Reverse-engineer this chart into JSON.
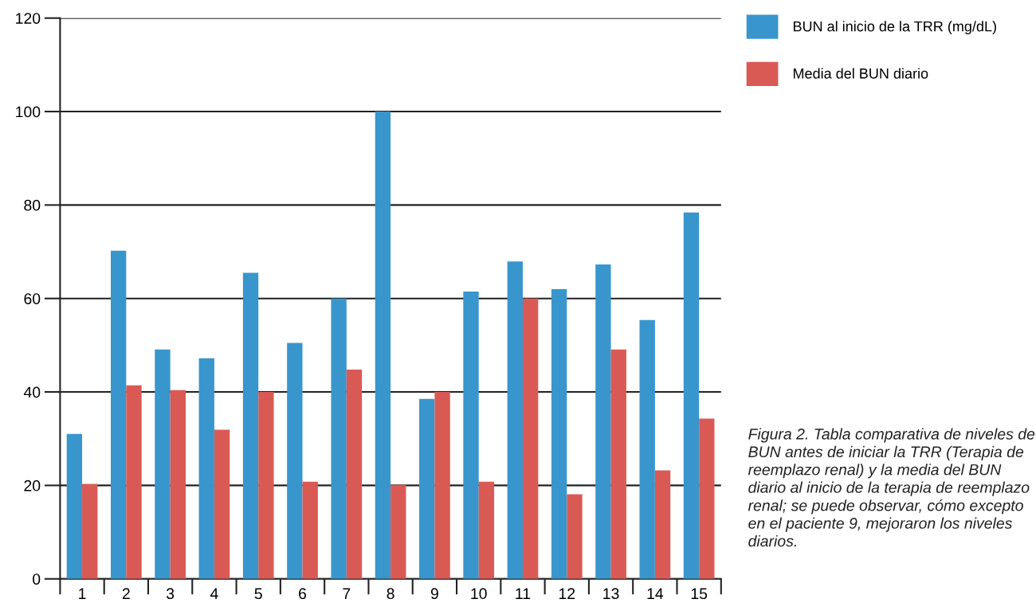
{
  "chart_data": {
    "type": "bar",
    "categories": [
      "1",
      "2",
      "3",
      "4",
      "5",
      "6",
      "7",
      "8",
      "9",
      "10",
      "11",
      "12",
      "13",
      "14",
      "15"
    ],
    "series": [
      {
        "name": "BUN al inicio de la TRR (mg/dL)",
        "color": "#3896cc",
        "values": [
          31,
          70.2,
          49.1,
          47.2,
          65.5,
          50.5,
          60,
          100,
          38.5,
          61.5,
          67.9,
          62,
          67.3,
          55.4,
          78.4
        ]
      },
      {
        "name": "Media del BUN diario",
        "color": "#d95a54",
        "values": [
          20.3,
          41.4,
          40.4,
          31.9,
          40,
          20.8,
          44.8,
          20.1,
          40,
          20.8,
          60,
          18.1,
          49.1,
          23.2,
          34.3
        ]
      }
    ],
    "ylim": [
      0,
      120
    ],
    "yticks": [
      0,
      20,
      40,
      60,
      80,
      100,
      120
    ],
    "grid": "y",
    "legend": "top right",
    "annotations": [
      "Figura 2. Tabla comparativa de niveles de BUN antes de iniciar la TRR (Terapia de reemplazo renal) y la media del BUN diario al inicio de la terapia de reemplazo renal; se puede observar, cómo excepto en el paciente 9, mejoraron los niveles diarios."
    ]
  }
}
